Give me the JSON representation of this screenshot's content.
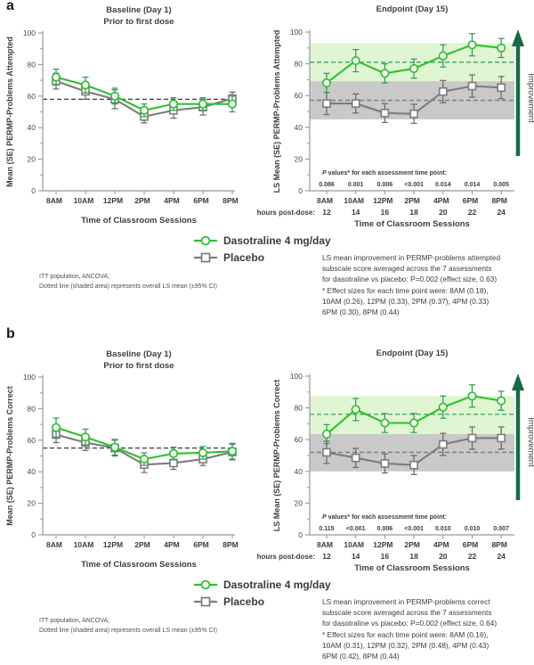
{
  "figure": {
    "background": "#ffffff",
    "series_legend": [
      "Dasotraline 4 mg/day",
      "Placebo"
    ]
  },
  "panels": [
    {
      "letter": "a",
      "legend": [
        {
          "label": "Dasotraline 4 mg/day",
          "marker": "circle",
          "color": "#2fc02f"
        },
        {
          "label": "Placebo",
          "marker": "square",
          "color": "#7c7c7c"
        }
      ],
      "footnote": "ITT population, ANCOVA;\nDotted line (shaded area) represents overall LS mean (±95% CI)",
      "annotation": "LS mean improvement in PERMP-problems attempted\nsubscale score averaged across the 7 assessments\nfor dasotraline vs placebo: P=0.002 (effect size, 0.63)\n* Effect sizes for each time point were: 8AM (0.18),\n10AM (0.26), 12PM (0.33), 2PM (0.37), 4PM (0.33)\n6PM (0.30), 8PM (0.44)"
    },
    {
      "letter": "b",
      "legend": [
        {
          "label": "Dasotraline 4 mg/day",
          "marker": "circle",
          "color": "#2fc02f"
        },
        {
          "label": "Placebo",
          "marker": "square",
          "color": "#7c7c7c"
        }
      ],
      "footnote": "ITT population, ANCOVA;\nDotted line (shaded area) represents overall LS mean (±95% CI)",
      "annotation": "LS mean improvement in PERMP-problems correct\nsubscale score averaged across the 7 assessments\nfor dasotraline vs placebo: P=0.002 (effect size, 0.64)\n* Effect sizes for each time point were: 8AM (0.16),\n10AM (0.31), 12PM (0.32), 2PM (0.48), 4PM (0.43)\n6PM (0.42), 8PM (0.44)"
    }
  ],
  "chart_data": [
    {
      "type": "line",
      "panel": "a",
      "variant": "baseline",
      "title": "Baseline (Day 1)",
      "subtitle": "Prior to first dose",
      "ylabel": "Mean (SE) PERMP-Problems Attempted",
      "xlabel": "Time of Classroom Sessions",
      "categories": [
        "8AM",
        "10AM",
        "12PM",
        "2PM",
        "4PM",
        "6PM",
        "8PM"
      ],
      "ylim": [
        0,
        100
      ],
      "yticks": [
        0,
        20,
        40,
        60,
        80,
        100
      ],
      "dashed_lines": [
        {
          "value": 58,
          "color": "#3a3a3a"
        }
      ],
      "series": [
        {
          "name": "Placebo",
          "marker": "square",
          "color": "#7c7c7c",
          "ebar_color": "#676767",
          "values": [
            69.5,
            63,
            58,
            47,
            51,
            53,
            58.5
          ],
          "se": [
            5,
            5,
            6,
            4,
            5,
            5,
            4
          ]
        },
        {
          "name": "Dasotraline 4 mg/day",
          "marker": "circle",
          "color": "#2fc02f",
          "ebar_color": "#2a9a55",
          "values": [
            72,
            67,
            60,
            51,
            55,
            55,
            55
          ],
          "se": [
            5,
            5,
            5,
            4,
            4,
            4,
            5
          ]
        }
      ]
    },
    {
      "type": "line",
      "panel": "a",
      "variant": "endpoint",
      "title": "Endpoint (Day 15)",
      "ylabel": "LS Mean (SE) PERMP-Problems Attempted",
      "xlabel": "Time of Classroom Sessions",
      "categories": [
        "8AM",
        "10AM",
        "12PM",
        "2PM",
        "4PM",
        "6PM",
        "8PM"
      ],
      "hours_label": "hours post-dose:",
      "hours": [
        "12",
        "14",
        "16",
        "18",
        "20",
        "22",
        "24"
      ],
      "ylim": [
        0,
        100
      ],
      "yticks": [
        0,
        20,
        40,
        60,
        80,
        100
      ],
      "pvalues_label": "P values* for each assessment time point:",
      "pvalues": [
        "0.086",
        "0.001",
        "0.006",
        "<0.001",
        "0.014",
        "0.014",
        "0.005"
      ],
      "bands": [
        {
          "from": 69,
          "to": 93,
          "color": "#e0f5d2"
        },
        {
          "from": 45,
          "to": 69,
          "color": "#c9c9c9"
        }
      ],
      "dashed_lines": [
        {
          "value": 81,
          "color": "#3fa263"
        },
        {
          "value": 57,
          "color": "#7a7a7a"
        }
      ],
      "improvement": {
        "label": "Improvement",
        "color": "#166b47"
      },
      "series": [
        {
          "name": "Placebo",
          "marker": "square",
          "color": "#7c7c7c",
          "ebar_color": "#676767",
          "values": [
            55,
            55,
            49,
            48.5,
            62.5,
            66,
            65
          ],
          "se": [
            7,
            6,
            6,
            6,
            7,
            7,
            7
          ]
        },
        {
          "name": "Dasotraline 4 mg/day",
          "marker": "circle",
          "color": "#2fc02f",
          "ebar_color": "#2a9a55",
          "values": [
            68,
            82,
            74,
            77,
            85,
            92,
            90
          ],
          "se": [
            6,
            7,
            6,
            6,
            7,
            7,
            6
          ]
        }
      ]
    },
    {
      "type": "line",
      "panel": "b",
      "variant": "baseline",
      "title": "Baseline (Day 1)",
      "subtitle": "Prior to first dose",
      "ylabel": "Mean (SE) PERMP-Problems Correct",
      "xlabel": "Time of Classroom Sessions",
      "categories": [
        "8AM",
        "10AM",
        "12PM",
        "2PM",
        "4PM",
        "6PM",
        "8PM"
      ],
      "ylim": [
        0,
        100
      ],
      "yticks": [
        0,
        20,
        40,
        60,
        80,
        100
      ],
      "dashed_lines": [
        {
          "value": 55,
          "color": "#3a3a3a"
        }
      ],
      "series": [
        {
          "name": "Placebo",
          "marker": "square",
          "color": "#7c7c7c",
          "ebar_color": "#676767",
          "values": [
            63.5,
            58.5,
            55,
            44.5,
            45.5,
            48,
            52.5
          ],
          "se": [
            5,
            5,
            5,
            5,
            4,
            4,
            5
          ]
        },
        {
          "name": "Dasotraline 4 mg/day",
          "marker": "circle",
          "color": "#2fc02f",
          "ebar_color": "#2a9a55",
          "values": [
            68,
            62,
            55.5,
            48,
            51.5,
            52,
            53
          ],
          "se": [
            6,
            5,
            5,
            4,
            4,
            4,
            5
          ]
        }
      ]
    },
    {
      "type": "line",
      "panel": "b",
      "variant": "endpoint",
      "title": "Endpoint (Day 15)",
      "ylabel": "LS Mean (SE) PERMP-Problems Correct",
      "xlabel": "Time of Classroom Sessions",
      "categories": [
        "8AM",
        "10AM",
        "12PM",
        "2PM",
        "4PM",
        "6PM",
        "8PM"
      ],
      "hours_label": "hours post-dose:",
      "hours": [
        "12",
        "14",
        "16",
        "18",
        "20",
        "22",
        "24"
      ],
      "ylim": [
        0,
        100
      ],
      "yticks": [
        0,
        20,
        40,
        60,
        80,
        100
      ],
      "pvalues_label": "P values* for each assessment time point:",
      "pvalues": [
        "0.115",
        "<0.001",
        "0.006",
        "<0.001",
        "0.010",
        "0.010",
        "0.007"
      ],
      "bands": [
        {
          "from": 63.5,
          "to": 87.5,
          "color": "#e0f5d2"
        },
        {
          "from": 40,
          "to": 63.5,
          "color": "#c9c9c9"
        }
      ],
      "dashed_lines": [
        {
          "value": 76,
          "color": "#3fa263"
        },
        {
          "value": 52,
          "color": "#7a7a7a"
        }
      ],
      "improvement": {
        "label": "Improvement",
        "color": "#166b47"
      },
      "series": [
        {
          "name": "Placebo",
          "marker": "square",
          "color": "#7c7c7c",
          "ebar_color": "#676767",
          "values": [
            52,
            48.5,
            45,
            44,
            57,
            61,
            61
          ],
          "se": [
            7,
            6,
            6,
            6,
            7,
            7,
            7
          ]
        },
        {
          "name": "Dasotraline 4 mg/day",
          "marker": "circle",
          "color": "#2fc02f",
          "ebar_color": "#2a9a55",
          "values": [
            63.5,
            79,
            70.5,
            70.5,
            80.5,
            87.5,
            84.5
          ],
          "se": [
            6,
            7,
            6,
            6,
            7,
            7,
            6
          ]
        }
      ]
    }
  ]
}
